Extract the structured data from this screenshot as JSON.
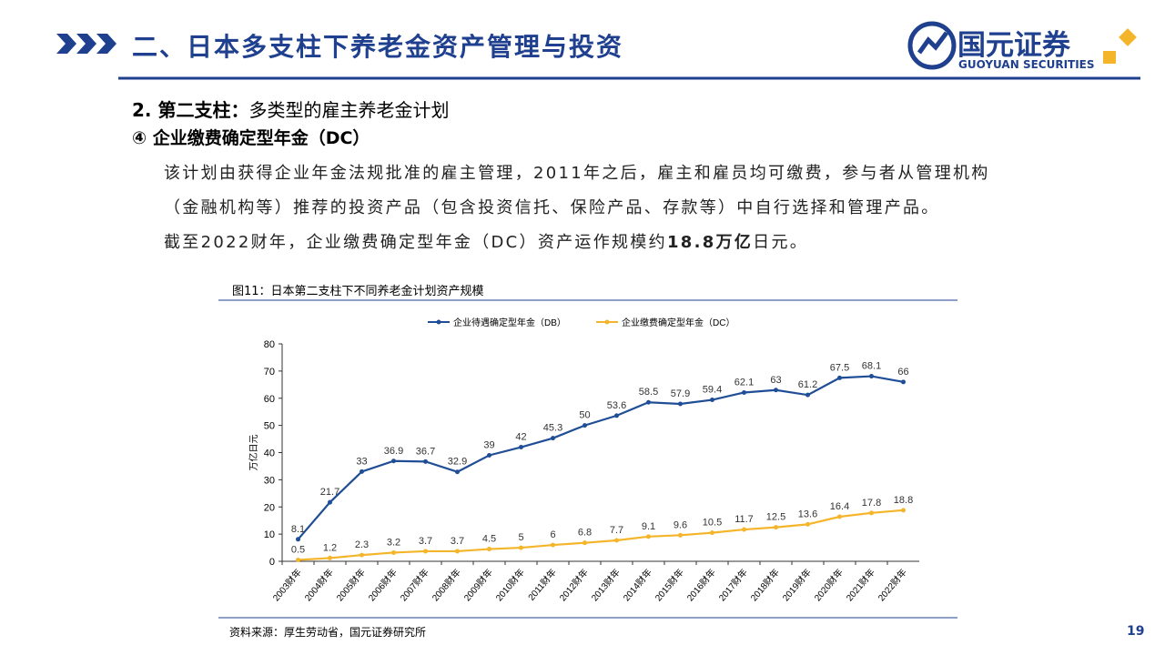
{
  "header": {
    "title": "二、日本多支柱下养老金资产管理与投资",
    "logo_name": "国元证券",
    "logo_en": "GUOYUAN SECURITIES"
  },
  "section": {
    "label": "2. 第二支柱：",
    "title": "多类型的雇主养老金计划",
    "subtitle": "④ 企业缴费确定型年金（DC）"
  },
  "body": {
    "paragraph1": "该计划由获得企业年金法规批准的雇主管理，2011年之后，雇主和雇员均可缴费，参与者从管理机构（金融机构等）推荐的投资产品（包含投资信托、保险产品、存款等）中自行选择和管理产品。",
    "paragraph2_start": "截至2022财年，企业缴费确定型年金（DC）资产运作规模约",
    "paragraph2_bold": "18.8万亿",
    "paragraph2_end": "日元。"
  },
  "chart_data": {
    "type": "line",
    "title": "图11：日本第二支柱下不同养老金计划资产规模",
    "y_label": "万亿日元",
    "categories": [
      "2003财年",
      "2004财年",
      "2005财年",
      "2006财年",
      "2007财年",
      "2008财年",
      "2009财年",
      "2010财年",
      "2011财年",
      "2012财年",
      "2013财年",
      "2014财年",
      "2015财年",
      "2016财年",
      "2017财年",
      "2018财年",
      "2019财年",
      "2020财年",
      "2021财年",
      "2022财年"
    ],
    "series": [
      {
        "name": "企业待遇确定型年金（DB）",
        "color": "#1f4e96",
        "values": [
          8.1,
          21.7,
          33,
          36.9,
          36.7,
          32.9,
          39,
          42,
          45.3,
          50,
          53.6,
          58.5,
          57.9,
          59.4,
          62.1,
          63,
          61.2,
          67.5,
          68.1,
          66
        ]
      },
      {
        "name": "企业缴费确定型年金（DC）",
        "color": "#f5b52a",
        "values": [
          0.5,
          1.2,
          2.3,
          3.2,
          3.7,
          3.7,
          4.5,
          5,
          6,
          6.8,
          7.7,
          9.1,
          9.6,
          10.5,
          11.7,
          12.5,
          13.6,
          16.4,
          17.8,
          18.8
        ]
      }
    ],
    "ylim": [
      0,
      80
    ],
    "yticks": [
      0,
      10,
      20,
      30,
      40,
      50,
      60,
      70,
      80
    ],
    "legend": "top",
    "grid": false,
    "source": "资料来源：厚生劳动省，国元证券研究所"
  },
  "page_number": "19"
}
